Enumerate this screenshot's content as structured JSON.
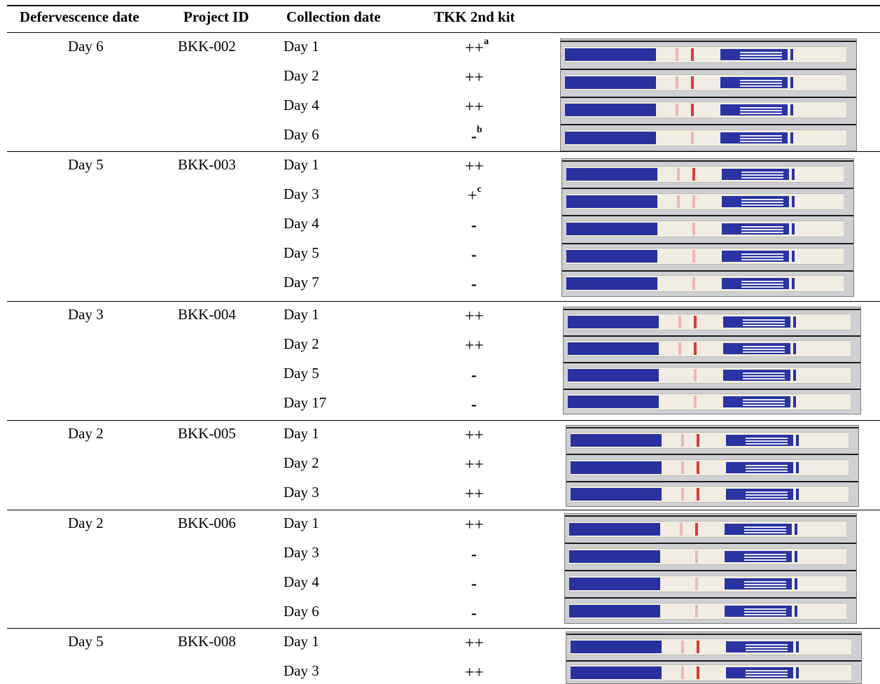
{
  "headers": {
    "defervescence": "Defervescence date",
    "project": "Project ID",
    "collection": "Collection date",
    "kit": "TKK 2nd kit"
  },
  "groups": [
    {
      "defervescence": "Day 6",
      "project": "BKK-002",
      "rows": [
        {
          "collection": "Day 1",
          "result": "++",
          "note": "a"
        },
        {
          "collection": "Day 2",
          "result": "++",
          "note": ""
        },
        {
          "collection": "Day 4",
          "result": "++",
          "note": ""
        },
        {
          "collection": "Day 6",
          "result": "-",
          "note": "b"
        }
      ]
    },
    {
      "defervescence": "Day 5",
      "project": "BKK-003",
      "rows": [
        {
          "collection": "Day 1",
          "result": "++",
          "note": ""
        },
        {
          "collection": "Day 3",
          "result": "+",
          "note": "c"
        },
        {
          "collection": "Day 4",
          "result": "-",
          "note": ""
        },
        {
          "collection": "Day 5",
          "result": "-",
          "note": ""
        },
        {
          "collection": "Day 7",
          "result": "-",
          "note": ""
        }
      ]
    },
    {
      "defervescence": "Day 3",
      "project": "BKK-004",
      "rows": [
        {
          "collection": "Day 1",
          "result": "++",
          "note": ""
        },
        {
          "collection": "Day 2",
          "result": "++",
          "note": ""
        },
        {
          "collection": "Day 5",
          "result": "-",
          "note": ""
        },
        {
          "collection": "Day 17",
          "result": "-",
          "note": ""
        }
      ]
    },
    {
      "defervescence": "Day 2",
      "project": "BKK-005",
      "rows": [
        {
          "collection": "Day 1",
          "result": "++",
          "note": ""
        },
        {
          "collection": "Day 2",
          "result": "++",
          "note": ""
        },
        {
          "collection": "Day 3",
          "result": "++",
          "note": ""
        }
      ]
    },
    {
      "defervescence": "Day 2",
      "project": "BKK-006",
      "rows": [
        {
          "collection": "Day 1",
          "result": "++",
          "note": ""
        },
        {
          "collection": "Day 3",
          "result": "-",
          "note": ""
        },
        {
          "collection": "Day 4",
          "result": "-",
          "note": ""
        },
        {
          "collection": "Day 6",
          "result": "-",
          "note": ""
        }
      ]
    },
    {
      "defervescence": "Day 5",
      "project": "BKK-008",
      "rows": [
        {
          "collection": "Day 1",
          "result": "++",
          "note": ""
        },
        {
          "collection": "Day 3",
          "result": "++",
          "note": ""
        }
      ]
    }
  ],
  "colors": {
    "strip_pad": "#29319e",
    "test_line": "#d63b3b",
    "faint_line": "#eeb6b6",
    "strip_body": "#f1ede2"
  }
}
